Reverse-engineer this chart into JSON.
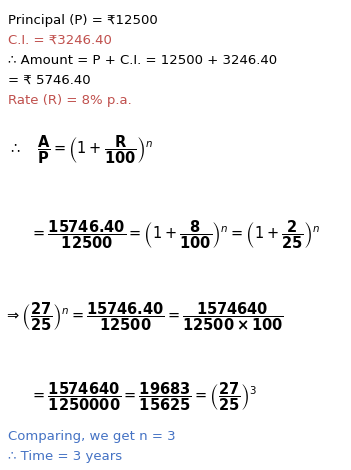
{
  "bg_color": "#ffffff",
  "black": "#000000",
  "blue": "#4472C4",
  "orange": "#C0504D",
  "figw": 3.51,
  "figh": 4.7,
  "dpi": 100
}
